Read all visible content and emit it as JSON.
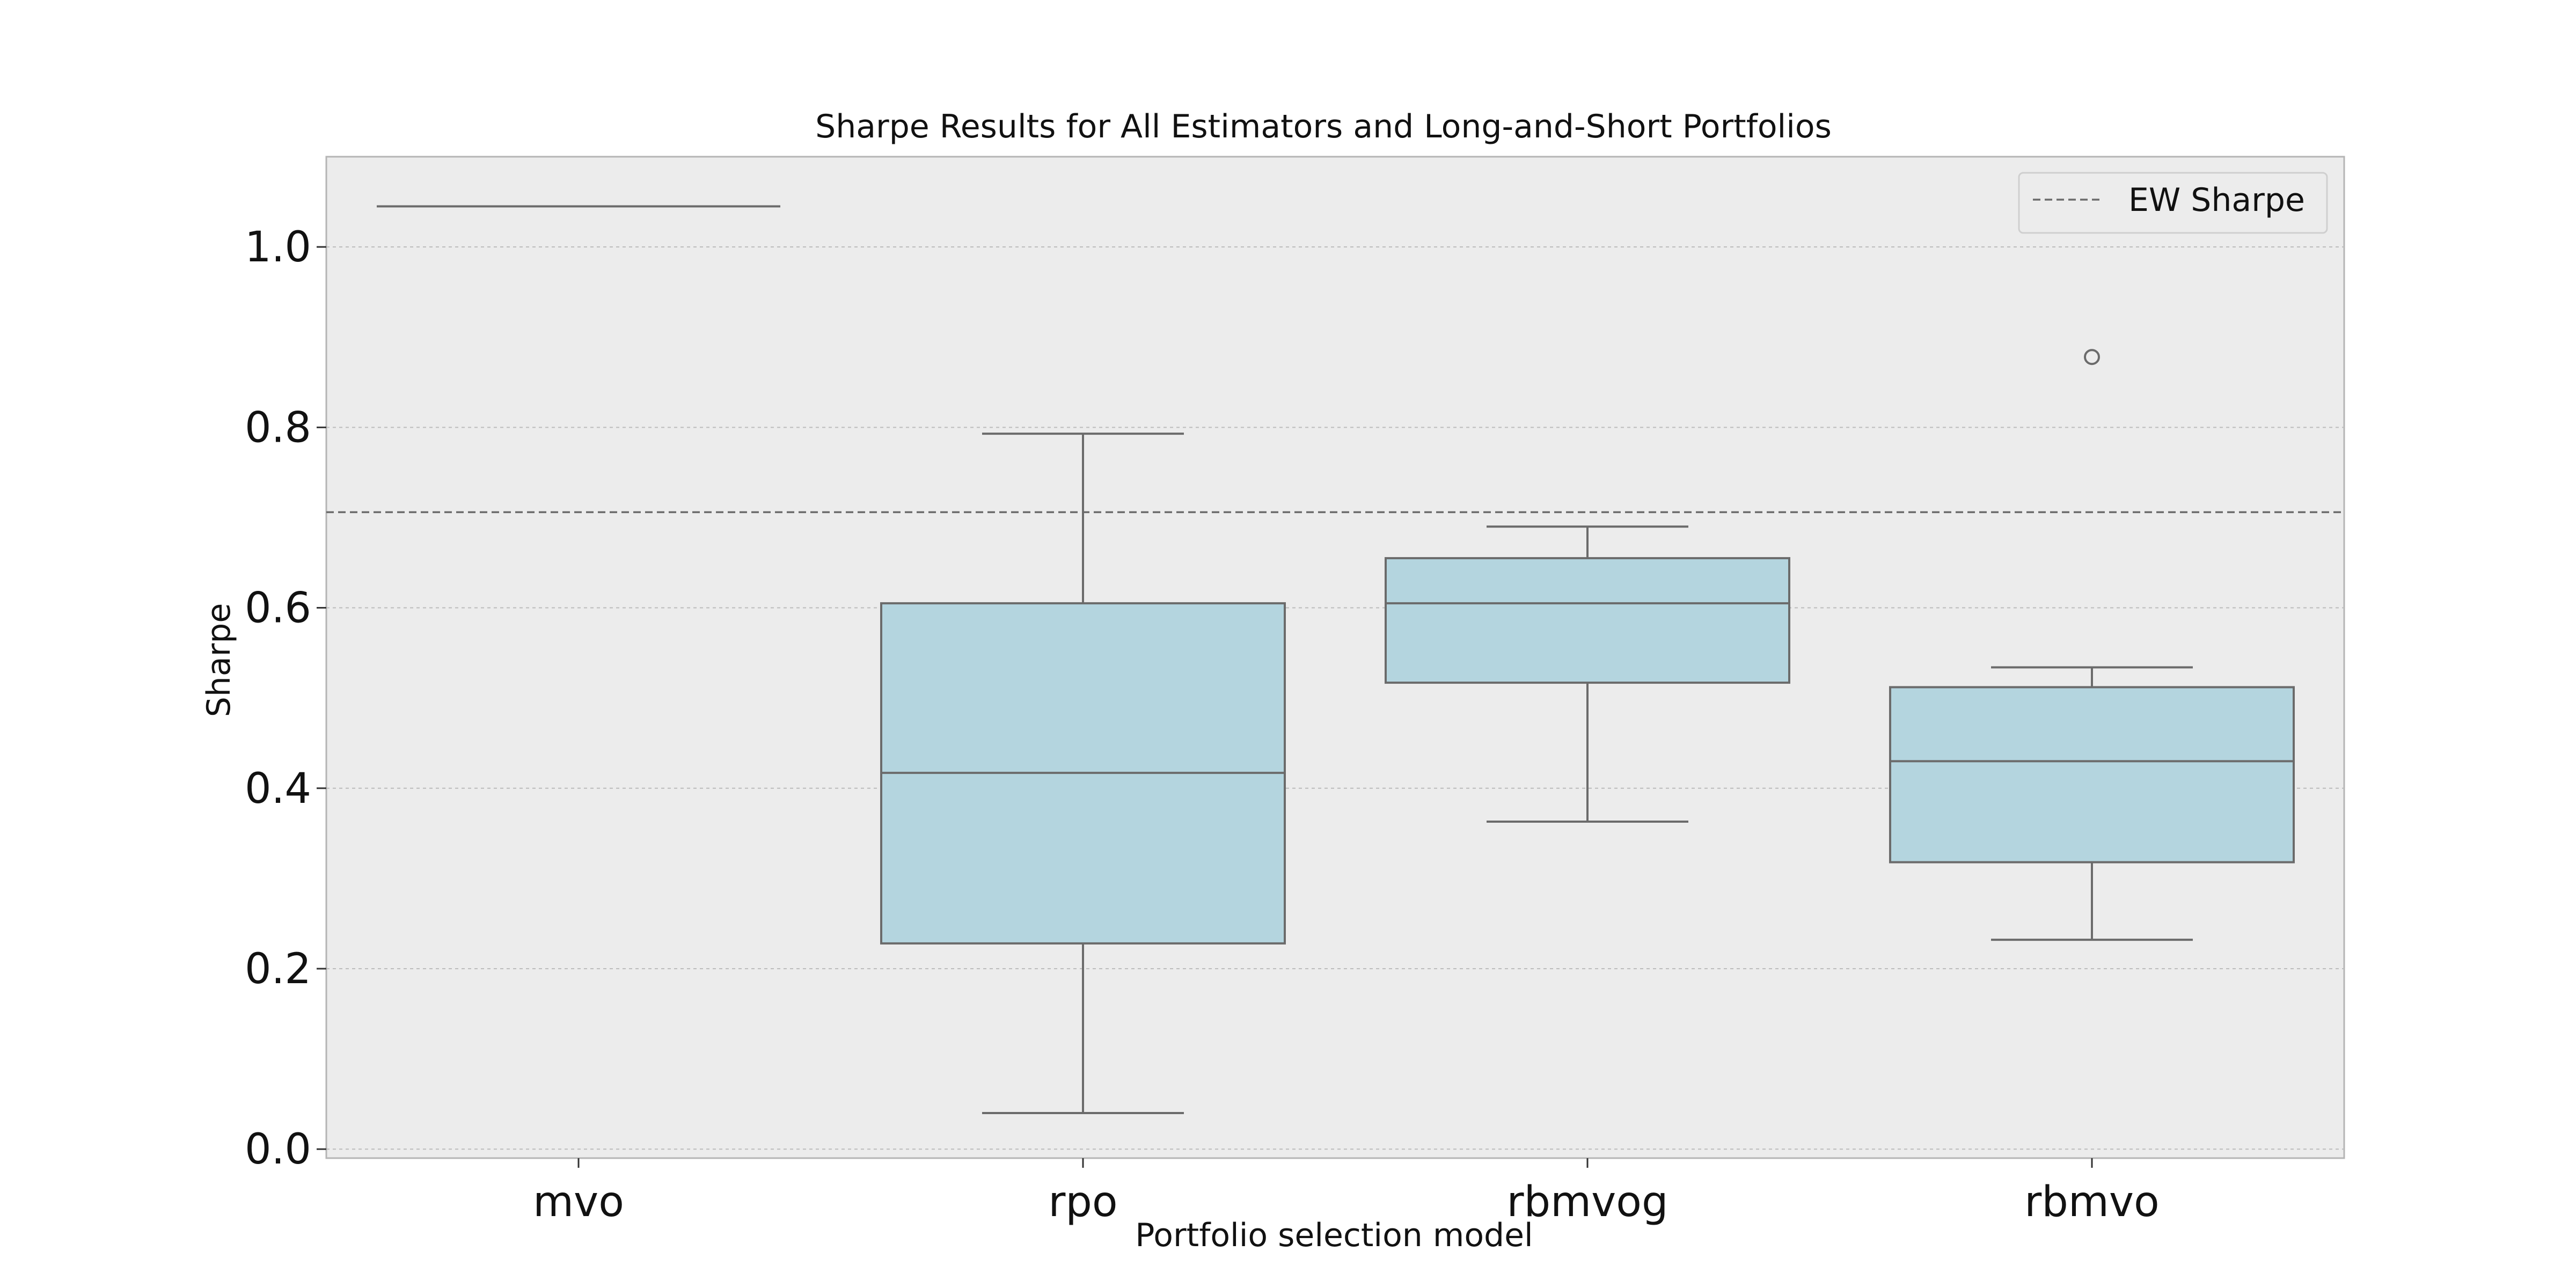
{
  "chart_data": {
    "type": "box",
    "title": "Sharpe Results for All Estimators and Long-and-Short Portfolios",
    "xlabel": "Portfolio selection model",
    "ylabel": "Sharpe",
    "ylim": [
      -0.01,
      1.1
    ],
    "yticks": [
      0.0,
      0.2,
      0.4,
      0.6,
      0.8,
      1.0
    ],
    "ytick_labels": [
      "0.0",
      "0.2",
      "0.4",
      "0.6",
      "0.8",
      "1.0"
    ],
    "grid": "horizontal",
    "categories": [
      "mvo",
      "rpo",
      "rbmvog",
      "rbmvo"
    ],
    "boxes": [
      {
        "category": "mvo",
        "whisker_low": 1.045,
        "q1": 1.045,
        "median": 1.045,
        "q3": 1.045,
        "whisker_high": 1.045,
        "outliers": []
      },
      {
        "category": "rpo",
        "whisker_low": 0.04,
        "q1": 0.228,
        "median": 0.417,
        "q3": 0.605,
        "whisker_high": 0.793,
        "outliers": []
      },
      {
        "category": "rbmvog",
        "whisker_low": 0.363,
        "q1": 0.517,
        "median": 0.605,
        "q3": 0.655,
        "whisker_high": 0.69,
        "outliers": []
      },
      {
        "category": "rbmvo",
        "whisker_low": 0.232,
        "q1": 0.318,
        "median": 0.43,
        "q3": 0.512,
        "whisker_high": 0.534,
        "outliers": [
          0.878
        ]
      }
    ],
    "reference_lines": [
      {
        "name": "EW Sharpe",
        "value": 0.706,
        "style": "dashed"
      }
    ],
    "legend": {
      "placement": "top-right",
      "entries": [
        "EW Sharpe"
      ]
    },
    "colors": {
      "box_fill": "#b4d5df",
      "box_edge": "#6b6b6b",
      "plot_background": "#ececec",
      "ref_line": "#6b6b6b"
    }
  }
}
